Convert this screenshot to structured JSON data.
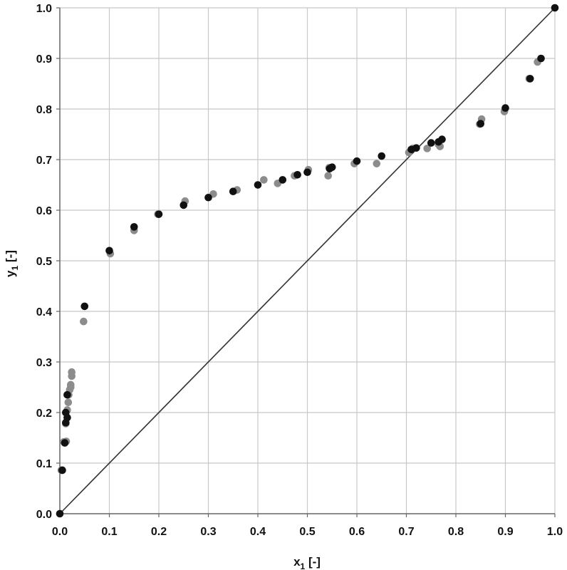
{
  "chart_data": {
    "type": "scatter",
    "title": "",
    "xlabel_main": "x",
    "xlabel_sub": "1",
    "xlabel_unit": " [-]",
    "ylabel_main": "y",
    "ylabel_sub": "1",
    "ylabel_unit": " [-]",
    "xlim": [
      0.0,
      1.0
    ],
    "ylim": [
      0.0,
      1.0
    ],
    "x_ticks": [
      0.0,
      0.1,
      0.2,
      0.3,
      0.4,
      0.5,
      0.6,
      0.7,
      0.8,
      0.9,
      1.0
    ],
    "y_ticks": [
      0.0,
      0.1,
      0.2,
      0.3,
      0.4,
      0.5,
      0.6,
      0.7,
      0.8,
      0.9,
      1.0
    ],
    "x_tick_labels": [
      "0.0",
      "0.1",
      "0.2",
      "0.3",
      "0.4",
      "0.5",
      "0.6",
      "0.7",
      "0.8",
      "0.9",
      "1.0"
    ],
    "y_tick_labels": [
      "0.0",
      "0.1",
      "0.2",
      "0.3",
      "0.4",
      "0.5",
      "0.6",
      "0.7",
      "0.8",
      "0.9",
      "1.0"
    ],
    "grid": "vertical",
    "legend": "none",
    "reference_line": {
      "x": [
        0.0,
        1.0
      ],
      "y": [
        0.0,
        1.0
      ],
      "color": "#333333"
    },
    "series": [
      {
        "color": "#111111",
        "points": [
          [
            0.0,
            0.0
          ],
          [
            0.005,
            0.086
          ],
          [
            0.01,
            0.14
          ],
          [
            0.012,
            0.18
          ],
          [
            0.012,
            0.2
          ],
          [
            0.015,
            0.19
          ],
          [
            0.015,
            0.235
          ],
          [
            0.05,
            0.41
          ],
          [
            0.1,
            0.52
          ],
          [
            0.15,
            0.567
          ],
          [
            0.2,
            0.592
          ],
          [
            0.25,
            0.61
          ],
          [
            0.3,
            0.625
          ],
          [
            0.35,
            0.637
          ],
          [
            0.4,
            0.65
          ],
          [
            0.45,
            0.66
          ],
          [
            0.48,
            0.67
          ],
          [
            0.5,
            0.675
          ],
          [
            0.545,
            0.682
          ],
          [
            0.55,
            0.685
          ],
          [
            0.6,
            0.697
          ],
          [
            0.65,
            0.707
          ],
          [
            0.71,
            0.72
          ],
          [
            0.72,
            0.723
          ],
          [
            0.75,
            0.733
          ],
          [
            0.765,
            0.735
          ],
          [
            0.772,
            0.74
          ],
          [
            0.85,
            0.771
          ],
          [
            0.9,
            0.802
          ],
          [
            0.95,
            0.86
          ],
          [
            0.972,
            0.9
          ],
          [
            1.0,
            1.0
          ]
        ]
      },
      {
        "color": "#8c8c8c",
        "points": [
          [
            0.003,
            0.086
          ],
          [
            0.008,
            0.142
          ],
          [
            0.013,
            0.143
          ],
          [
            0.012,
            0.178
          ],
          [
            0.015,
            0.205
          ],
          [
            0.017,
            0.22
          ],
          [
            0.018,
            0.235
          ],
          [
            0.02,
            0.245
          ],
          [
            0.022,
            0.25
          ],
          [
            0.022,
            0.255
          ],
          [
            0.024,
            0.272
          ],
          [
            0.024,
            0.28
          ],
          [
            0.048,
            0.38
          ],
          [
            0.102,
            0.514
          ],
          [
            0.15,
            0.56
          ],
          [
            0.198,
            0.592
          ],
          [
            0.253,
            0.618
          ],
          [
            0.31,
            0.632
          ],
          [
            0.358,
            0.64
          ],
          [
            0.412,
            0.66
          ],
          [
            0.44,
            0.653
          ],
          [
            0.474,
            0.668
          ],
          [
            0.502,
            0.68
          ],
          [
            0.542,
            0.668
          ],
          [
            0.544,
            0.684
          ],
          [
            0.595,
            0.692
          ],
          [
            0.64,
            0.692
          ],
          [
            0.705,
            0.714
          ],
          [
            0.713,
            0.722
          ],
          [
            0.742,
            0.722
          ],
          [
            0.765,
            0.73
          ],
          [
            0.768,
            0.726
          ],
          [
            0.852,
            0.78
          ],
          [
            0.848,
            0.77
          ],
          [
            0.898,
            0.795
          ],
          [
            0.948,
            0.86
          ],
          [
            0.965,
            0.893
          ]
        ]
      }
    ]
  }
}
